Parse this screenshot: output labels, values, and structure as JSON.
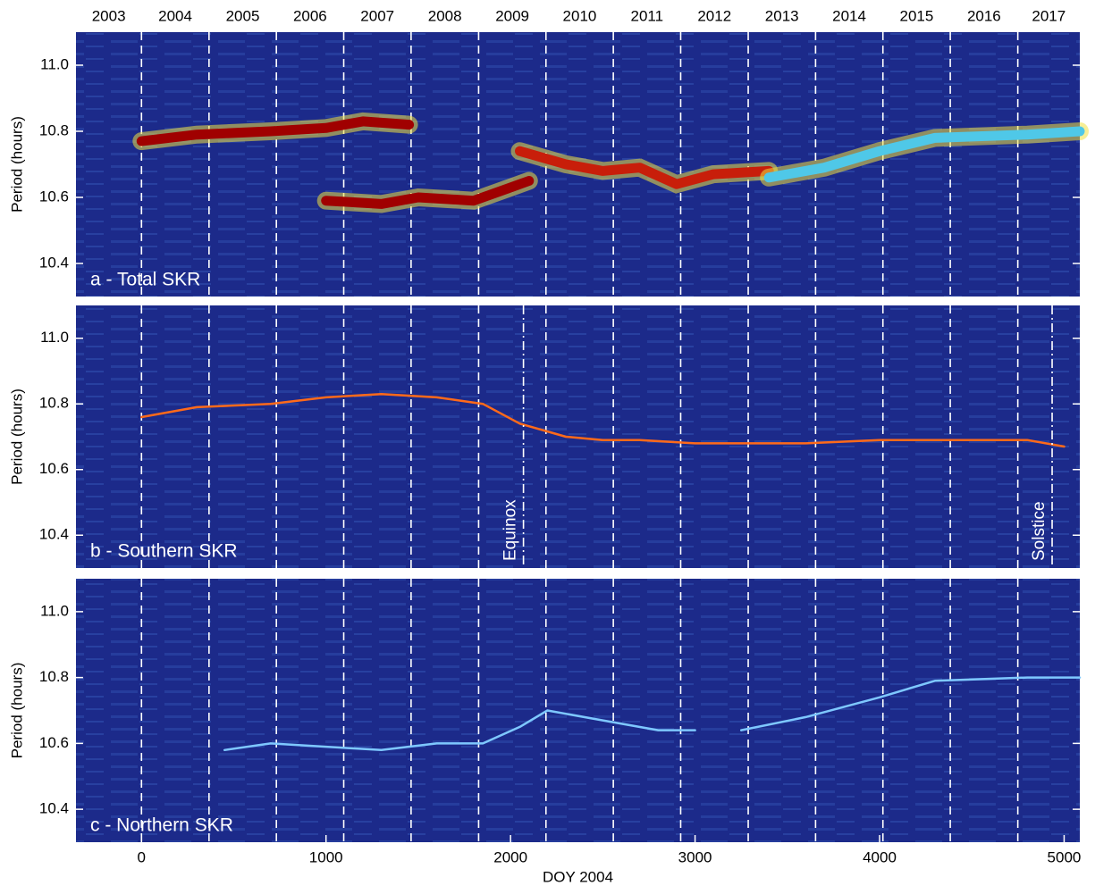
{
  "chart_data": [
    {
      "type": "line",
      "panel_label": "a - Total SKR",
      "ylabel": "Period (hours)",
      "years": [
        "2003",
        "2004",
        "2005",
        "2006",
        "2007",
        "2008",
        "2009",
        "2010",
        "2011",
        "2012",
        "2013",
        "2014",
        "2015",
        "2016",
        "2017"
      ],
      "year_lines": [
        0,
        366,
        731,
        1096,
        1461,
        1827,
        2192,
        2557,
        2922,
        3288,
        3653,
        4018,
        4383,
        4749
      ],
      "xlim": [
        -355,
        5085
      ],
      "ylim": [
        10.3,
        11.1
      ],
      "yticks": [
        10.4,
        10.6,
        10.8,
        {
          "value": 11,
          "label": "11.0"
        }
      ],
      "series": [
        {
          "color": "#a00000",
          "x": [
            0,
            300,
            700,
            1000,
            1200,
            1450
          ],
          "values": [
            10.77,
            10.79,
            10.8,
            10.81,
            10.83,
            10.82
          ]
        },
        {
          "color": "#a00000",
          "x": [
            1000,
            1300,
            1500,
            1800,
            2000,
            2100
          ],
          "values": [
            10.59,
            10.58,
            10.6,
            10.59,
            10.63,
            10.65
          ]
        },
        {
          "color": "#c81e0a",
          "x": [
            2050,
            2300,
            2500,
            2700,
            2900,
            3100,
            3400
          ],
          "values": [
            10.74,
            10.7,
            10.68,
            10.69,
            10.64,
            10.67,
            10.68
          ]
        },
        {
          "color": "#4fc8e8",
          "x": [
            3400,
            3700,
            4000,
            4300,
            4800,
            5085
          ],
          "values": [
            10.66,
            10.69,
            10.74,
            10.78,
            10.79,
            10.8
          ]
        }
      ]
    },
    {
      "type": "line",
      "panel_label": "b - Southern SKR",
      "ylabel": "Period (hours)",
      "xlim": [
        -355,
        5085
      ],
      "ylim": [
        10.3,
        11.1
      ],
      "yticks": [
        10.4,
        10.6,
        10.8,
        {
          "value": 11,
          "label": "11.0"
        }
      ],
      "events": [
        {
          "label": "Equinox",
          "x": 2070
        },
        {
          "label": "Solstice",
          "x": 4935
        }
      ],
      "series": [
        {
          "color": "#ff6a1a",
          "x": [
            0,
            300,
            700,
            1000,
            1300,
            1600,
            1850,
            2050,
            2300,
            2500,
            2700,
            3000,
            3300,
            3600,
            4000,
            4400,
            4800,
            5000
          ],
          "values": [
            10.76,
            10.79,
            10.8,
            10.82,
            10.83,
            10.82,
            10.8,
            10.74,
            10.7,
            10.69,
            10.69,
            10.68,
            10.68,
            10.68,
            10.69,
            10.69,
            10.69,
            10.67
          ]
        }
      ]
    },
    {
      "type": "line",
      "panel_label": "c - Northern SKR",
      "ylabel": "Period (hours)",
      "xlabel": "DOY 2004",
      "xlim": [
        -355,
        5085
      ],
      "ylim": [
        10.3,
        11.1
      ],
      "xticks": [
        0,
        1000,
        2000,
        3000,
        4000,
        5000
      ],
      "yticks": [
        10.4,
        10.6,
        10.8,
        {
          "value": 11,
          "label": "11.0"
        }
      ],
      "series": [
        {
          "color": "#7ec8ff",
          "x": [
            450,
            700,
            1000,
            1300,
            1600,
            1850,
            2050,
            2200,
            2500,
            2800,
            3000,
            3100,
            3250,
            3600,
            4000,
            4300,
            4800,
            5085
          ],
          "values": [
            10.58,
            10.6,
            10.59,
            10.58,
            10.6,
            10.6,
            10.65,
            10.7,
            10.67,
            10.64,
            10.64,
            null,
            10.64,
            10.68,
            10.74,
            10.79,
            10.8,
            10.8
          ]
        }
      ]
    }
  ]
}
